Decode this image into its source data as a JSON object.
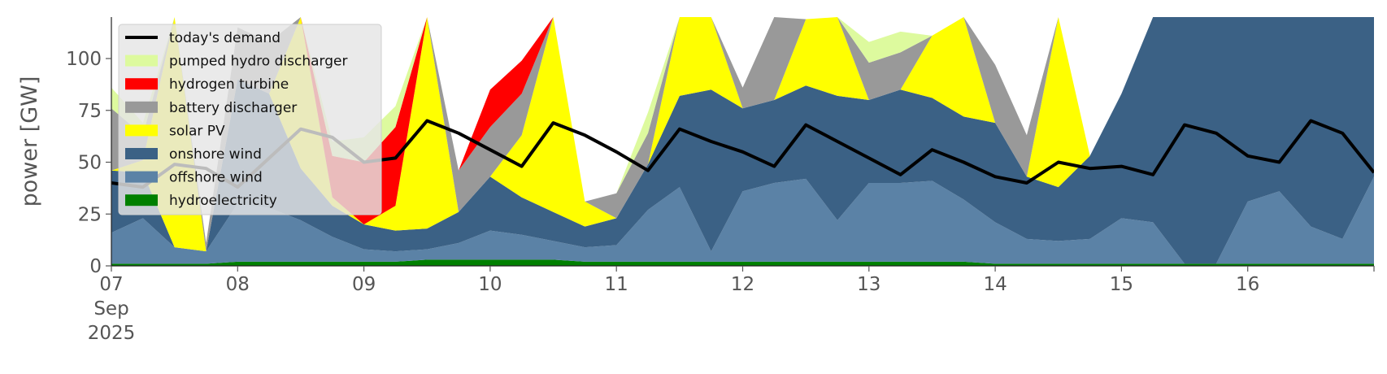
{
  "chart_data": {
    "type": "area",
    "title": "",
    "xlabel": "",
    "ylabel": "power [GW]",
    "ylim": [
      0,
      120
    ],
    "xlim": [
      "2025-09-07 00:00",
      "2025-09-17 00:00"
    ],
    "yticks": [
      0,
      25,
      50,
      75,
      100
    ],
    "xtick_labels": [
      {
        "date": "2025-09-07",
        "lines": [
          "07",
          "Sep",
          "2025"
        ]
      },
      {
        "date": "2025-09-08",
        "lines": [
          "08"
        ]
      },
      {
        "date": "2025-09-09",
        "lines": [
          "09"
        ]
      },
      {
        "date": "2025-09-10",
        "lines": [
          "10"
        ]
      },
      {
        "date": "2025-09-11",
        "lines": [
          "11"
        ]
      },
      {
        "date": "2025-09-12",
        "lines": [
          "12"
        ]
      },
      {
        "date": "2025-09-13",
        "lines": [
          "13"
        ]
      },
      {
        "date": "2025-09-14",
        "lines": [
          "14"
        ]
      },
      {
        "date": "2025-09-15",
        "lines": [
          "15"
        ]
      },
      {
        "date": "2025-09-16",
        "lines": [
          "16"
        ]
      }
    ],
    "grid": false,
    "legend_position": "top-left",
    "x": [
      "2025-09-07 00:00",
      "2025-09-07 06:00",
      "2025-09-07 12:00",
      "2025-09-07 18:00",
      "2025-09-08 00:00",
      "2025-09-08 06:00",
      "2025-09-08 12:00",
      "2025-09-08 18:00",
      "2025-09-09 00:00",
      "2025-09-09 06:00",
      "2025-09-09 12:00",
      "2025-09-09 18:00",
      "2025-09-10 00:00",
      "2025-09-10 06:00",
      "2025-09-10 12:00",
      "2025-09-10 18:00",
      "2025-09-11 00:00",
      "2025-09-11 06:00",
      "2025-09-11 12:00",
      "2025-09-11 18:00",
      "2025-09-12 00:00",
      "2025-09-12 06:00",
      "2025-09-12 12:00",
      "2025-09-12 18:00",
      "2025-09-13 00:00",
      "2025-09-13 06:00",
      "2025-09-13 12:00",
      "2025-09-13 18:00",
      "2025-09-14 00:00",
      "2025-09-14 06:00",
      "2025-09-14 12:00",
      "2025-09-14 18:00",
      "2025-09-15 00:00",
      "2025-09-15 06:00",
      "2025-09-15 12:00",
      "2025-09-15 18:00",
      "2025-09-16 00:00",
      "2025-09-16 06:00",
      "2025-09-16 12:00",
      "2025-09-16 18:00",
      "2025-09-17 00:00"
    ],
    "series": [
      {
        "name": "hydroelectricity",
        "color": "#008000",
        "kind": "area",
        "values": [
          1,
          1,
          1,
          1,
          2,
          2,
          2,
          2,
          2,
          2,
          3,
          3,
          3,
          3,
          3,
          2,
          2,
          2,
          2,
          2,
          2,
          2,
          2,
          2,
          2,
          2,
          2,
          2,
          1,
          1,
          1,
          1,
          1,
          1,
          1,
          1,
          1,
          1,
          1,
          1,
          1
        ]
      },
      {
        "name": "offshore wind",
        "color": "#5b82a6",
        "kind": "area",
        "values": [
          15,
          22,
          8,
          6,
          28,
          26,
          20,
          12,
          6,
          5,
          5,
          8,
          14,
          12,
          9,
          7,
          8,
          25,
          36,
          5,
          34,
          38,
          40,
          20,
          38,
          38,
          39,
          30,
          20,
          12,
          11,
          12,
          22,
          20,
          0,
          0,
          30,
          35,
          18,
          12,
          42
        ]
      },
      {
        "name": "onshore wind",
        "color": "#3b6185",
        "kind": "area",
        "values": [
          30,
          22,
          0,
          0,
          60,
          55,
          25,
          15,
          12,
          10,
          10,
          15,
          26,
          18,
          14,
          10,
          13,
          22,
          44,
          78,
          40,
          40,
          45,
          60,
          40,
          45,
          40,
          40,
          48,
          30,
          26,
          40,
          60,
          120,
          120,
          120,
          120,
          120,
          120,
          120,
          120
        ]
      },
      {
        "name": "solar PV",
        "color": "#ffff00",
        "kind": "area",
        "values": [
          0,
          6,
          120,
          0,
          0,
          0,
          120,
          4,
          0,
          12,
          120,
          0,
          0,
          30,
          120,
          12,
          0,
          0,
          40,
          120,
          0,
          0,
          32,
          120,
          0,
          0,
          30,
          120,
          0,
          0,
          120,
          0,
          0,
          0,
          120,
          0,
          0,
          0,
          120,
          0,
          0
        ]
      },
      {
        "name": "battery discharger",
        "color": "#999999",
        "kind": "area",
        "values": [
          30,
          12,
          0,
          4,
          25,
          25,
          35,
          0,
          0,
          0,
          0,
          20,
          24,
          20,
          0,
          0,
          12,
          15,
          0,
          0,
          10,
          65,
          0,
          0,
          18,
          18,
          0,
          0,
          28,
          20,
          0,
          0,
          0,
          60,
          0,
          0,
          0,
          0,
          0,
          0,
          0
        ]
      },
      {
        "name": "hydrogen turbine",
        "color": "#ff0000",
        "kind": "area",
        "values": [
          0,
          0,
          0,
          0,
          0,
          0,
          0,
          20,
          30,
          38,
          0,
          0,
          18,
          16,
          0,
          0,
          0,
          0,
          0,
          0,
          0,
          0,
          0,
          0,
          0,
          0,
          0,
          0,
          0,
          0,
          0,
          0,
          0,
          0,
          0,
          0,
          0,
          0,
          0,
          0,
          0
        ]
      },
      {
        "name": "pumped hydro discharger",
        "color": "#ddfa9e",
        "kind": "area",
        "values": [
          10,
          6,
          0,
          0,
          0,
          0,
          0,
          7,
          12,
          10,
          0,
          0,
          0,
          0,
          0,
          0,
          0,
          10,
          0,
          0,
          0,
          0,
          0,
          0,
          10,
          10,
          0,
          0,
          0,
          0,
          0,
          0,
          0,
          0,
          0,
          0,
          0,
          0,
          0,
          0,
          0
        ]
      },
      {
        "name": "today's demand",
        "color": "#000000",
        "kind": "line",
        "values": [
          40,
          38,
          49,
          47,
          38,
          52,
          66,
          62,
          50,
          52,
          70,
          64,
          56,
          48,
          69,
          63,
          55,
          46,
          66,
          60,
          55,
          48,
          68,
          60,
          52,
          44,
          56,
          50,
          43,
          40,
          50,
          47,
          48,
          44,
          68,
          64,
          53,
          50,
          70,
          64,
          45
        ]
      }
    ]
  }
}
